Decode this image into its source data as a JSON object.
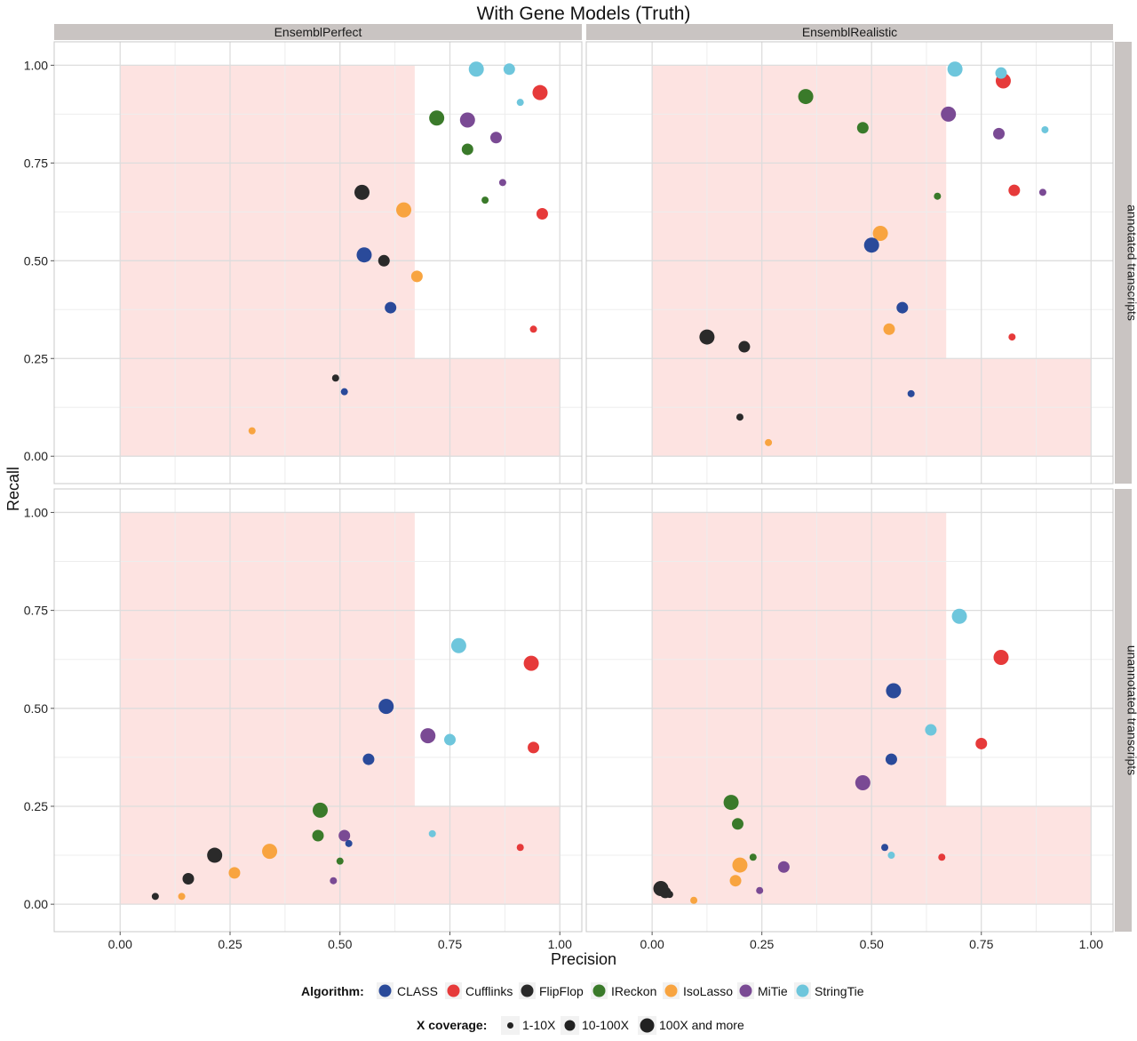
{
  "chart_data": {
    "type": "scatter",
    "title": "With Gene Models (Truth)",
    "xlabel": "Precision",
    "ylabel": "Recall",
    "xlim": [
      -0.15,
      1.05
    ],
    "ylim": [
      -0.07,
      1.06
    ],
    "x_ticks": [
      "0.00",
      "0.25",
      "0.50",
      "0.75",
      "1.00"
    ],
    "y_ticks": [
      "0.00",
      "0.25",
      "0.50",
      "0.75",
      "1.00"
    ],
    "col_facets": [
      "EnsemblPerfect",
      "EnsemblRealistic"
    ],
    "row_facets": [
      "annotated transcripts",
      "unannotated transcripts"
    ],
    "grid": true,
    "legend_position": "bottom",
    "algorithm_legend_title": "Algorithm:",
    "coverage_legend_title": "X coverage:",
    "algorithms": [
      {
        "name": "CLASS",
        "color": "#2a4a9a"
      },
      {
        "name": "Cufflinks",
        "color": "#e63a3a"
      },
      {
        "name": "FlipFlop",
        "color": "#2a2a2a"
      },
      {
        "name": "IReckon",
        "color": "#3a7a2a"
      },
      {
        "name": "IsoLasso",
        "color": "#f8a440"
      },
      {
        "name": "MiTie",
        "color": "#7a4a94"
      },
      {
        "name": "StringTie",
        "color": "#6ec6dc"
      }
    ],
    "coverages": [
      "1-10X",
      "10-100X",
      "100X and more"
    ],
    "shaded_region_color": "#fde3e1",
    "panels": [
      {
        "col": "EnsemblPerfect",
        "row": "annotated transcripts",
        "points": [
          {
            "alg": "StringTie",
            "cov": "100X and more",
            "x": 0.81,
            "y": 0.99
          },
          {
            "alg": "StringTie",
            "cov": "10-100X",
            "x": 0.885,
            "y": 0.99
          },
          {
            "alg": "StringTie",
            "cov": "1-10X",
            "x": 0.91,
            "y": 0.905
          },
          {
            "alg": "Cufflinks",
            "cov": "100X and more",
            "x": 0.955,
            "y": 0.93
          },
          {
            "alg": "Cufflinks",
            "cov": "10-100X",
            "x": 0.96,
            "y": 0.62
          },
          {
            "alg": "Cufflinks",
            "cov": "1-10X",
            "x": 0.94,
            "y": 0.325
          },
          {
            "alg": "IReckon",
            "cov": "100X and more",
            "x": 0.72,
            "y": 0.865
          },
          {
            "alg": "IReckon",
            "cov": "10-100X",
            "x": 0.79,
            "y": 0.785
          },
          {
            "alg": "IReckon",
            "cov": "1-10X",
            "x": 0.83,
            "y": 0.655
          },
          {
            "alg": "MiTie",
            "cov": "100X and more",
            "x": 0.79,
            "y": 0.86
          },
          {
            "alg": "MiTie",
            "cov": "10-100X",
            "x": 0.855,
            "y": 0.815
          },
          {
            "alg": "MiTie",
            "cov": "1-10X",
            "x": 0.87,
            "y": 0.7
          },
          {
            "alg": "FlipFlop",
            "cov": "100X and more",
            "x": 0.55,
            "y": 0.675
          },
          {
            "alg": "FlipFlop",
            "cov": "10-100X",
            "x": 0.6,
            "y": 0.5
          },
          {
            "alg": "FlipFlop",
            "cov": "1-10X",
            "x": 0.49,
            "y": 0.2
          },
          {
            "alg": "IsoLasso",
            "cov": "100X and more",
            "x": 0.645,
            "y": 0.63
          },
          {
            "alg": "IsoLasso",
            "cov": "10-100X",
            "x": 0.675,
            "y": 0.46
          },
          {
            "alg": "IsoLasso",
            "cov": "1-10X",
            "x": 0.3,
            "y": 0.065
          },
          {
            "alg": "CLASS",
            "cov": "100X and more",
            "x": 0.555,
            "y": 0.515
          },
          {
            "alg": "CLASS",
            "cov": "10-100X",
            "x": 0.615,
            "y": 0.38
          },
          {
            "alg": "CLASS",
            "cov": "1-10X",
            "x": 0.51,
            "y": 0.165
          }
        ]
      },
      {
        "col": "EnsemblRealistic",
        "row": "annotated transcripts",
        "points": [
          {
            "alg": "StringTie",
            "cov": "100X and more",
            "x": 0.69,
            "y": 0.99
          },
          {
            "alg": "StringTie",
            "cov": "10-100X",
            "x": 0.795,
            "y": 0.98
          },
          {
            "alg": "StringTie",
            "cov": "1-10X",
            "x": 0.895,
            "y": 0.835
          },
          {
            "alg": "Cufflinks",
            "cov": "100X and more",
            "x": 0.8,
            "y": 0.96
          },
          {
            "alg": "Cufflinks",
            "cov": "10-100X",
            "x": 0.825,
            "y": 0.68
          },
          {
            "alg": "Cufflinks",
            "cov": "1-10X",
            "x": 0.82,
            "y": 0.305
          },
          {
            "alg": "IReckon",
            "cov": "100X and more",
            "x": 0.35,
            "y": 0.92
          },
          {
            "alg": "IReckon",
            "cov": "10-100X",
            "x": 0.48,
            "y": 0.84
          },
          {
            "alg": "IReckon",
            "cov": "1-10X",
            "x": 0.65,
            "y": 0.665
          },
          {
            "alg": "MiTie",
            "cov": "100X and more",
            "x": 0.675,
            "y": 0.875
          },
          {
            "alg": "MiTie",
            "cov": "10-100X",
            "x": 0.79,
            "y": 0.825
          },
          {
            "alg": "MiTie",
            "cov": "1-10X",
            "x": 0.89,
            "y": 0.675
          },
          {
            "alg": "IsoLasso",
            "cov": "100X and more",
            "x": 0.52,
            "y": 0.57
          },
          {
            "alg": "IsoLasso",
            "cov": "10-100X",
            "x": 0.54,
            "y": 0.325
          },
          {
            "alg": "IsoLasso",
            "cov": "1-10X",
            "x": 0.265,
            "y": 0.035
          },
          {
            "alg": "CLASS",
            "cov": "100X and more",
            "x": 0.5,
            "y": 0.54
          },
          {
            "alg": "CLASS",
            "cov": "10-100X",
            "x": 0.57,
            "y": 0.38
          },
          {
            "alg": "CLASS",
            "cov": "1-10X",
            "x": 0.59,
            "y": 0.16
          },
          {
            "alg": "FlipFlop",
            "cov": "100X and more",
            "x": 0.125,
            "y": 0.305
          },
          {
            "alg": "FlipFlop",
            "cov": "10-100X",
            "x": 0.21,
            "y": 0.28
          },
          {
            "alg": "FlipFlop",
            "cov": "1-10X",
            "x": 0.2,
            "y": 0.1
          }
        ]
      },
      {
        "col": "EnsemblPerfect",
        "row": "unannotated transcripts",
        "points": [
          {
            "alg": "StringTie",
            "cov": "100X and more",
            "x": 0.77,
            "y": 0.66
          },
          {
            "alg": "StringTie",
            "cov": "10-100X",
            "x": 0.75,
            "y": 0.42
          },
          {
            "alg": "StringTie",
            "cov": "1-10X",
            "x": 0.71,
            "y": 0.18
          },
          {
            "alg": "Cufflinks",
            "cov": "100X and more",
            "x": 0.935,
            "y": 0.615
          },
          {
            "alg": "Cufflinks",
            "cov": "10-100X",
            "x": 0.94,
            "y": 0.4
          },
          {
            "alg": "Cufflinks",
            "cov": "1-10X",
            "x": 0.91,
            "y": 0.145
          },
          {
            "alg": "CLASS",
            "cov": "100X and more",
            "x": 0.605,
            "y": 0.505
          },
          {
            "alg": "CLASS",
            "cov": "10-100X",
            "x": 0.565,
            "y": 0.37
          },
          {
            "alg": "CLASS",
            "cov": "1-10X",
            "x": 0.52,
            "y": 0.155
          },
          {
            "alg": "MiTie",
            "cov": "100X and more",
            "x": 0.7,
            "y": 0.43
          },
          {
            "alg": "MiTie",
            "cov": "10-100X",
            "x": 0.51,
            "y": 0.175
          },
          {
            "alg": "MiTie",
            "cov": "1-10X",
            "x": 0.485,
            "y": 0.06
          },
          {
            "alg": "IReckon",
            "cov": "100X and more",
            "x": 0.455,
            "y": 0.24
          },
          {
            "alg": "IReckon",
            "cov": "10-100X",
            "x": 0.45,
            "y": 0.175
          },
          {
            "alg": "IReckon",
            "cov": "1-10X",
            "x": 0.5,
            "y": 0.11
          },
          {
            "alg": "IsoLasso",
            "cov": "100X and more",
            "x": 0.34,
            "y": 0.135
          },
          {
            "alg": "IsoLasso",
            "cov": "10-100X",
            "x": 0.26,
            "y": 0.08
          },
          {
            "alg": "IsoLasso",
            "cov": "1-10X",
            "x": 0.14,
            "y": 0.02
          },
          {
            "alg": "FlipFlop",
            "cov": "100X and more",
            "x": 0.215,
            "y": 0.125
          },
          {
            "alg": "FlipFlop",
            "cov": "10-100X",
            "x": 0.155,
            "y": 0.065
          },
          {
            "alg": "FlipFlop",
            "cov": "1-10X",
            "x": 0.08,
            "y": 0.02
          }
        ]
      },
      {
        "col": "EnsemblRealistic",
        "row": "unannotated transcripts",
        "points": [
          {
            "alg": "StringTie",
            "cov": "100X and more",
            "x": 0.7,
            "y": 0.735
          },
          {
            "alg": "StringTie",
            "cov": "10-100X",
            "x": 0.635,
            "y": 0.445
          },
          {
            "alg": "StringTie",
            "cov": "1-10X",
            "x": 0.545,
            "y": 0.125
          },
          {
            "alg": "Cufflinks",
            "cov": "100X and more",
            "x": 0.795,
            "y": 0.63
          },
          {
            "alg": "Cufflinks",
            "cov": "10-100X",
            "x": 0.75,
            "y": 0.41
          },
          {
            "alg": "Cufflinks",
            "cov": "1-10X",
            "x": 0.66,
            "y": 0.12
          },
          {
            "alg": "CLASS",
            "cov": "100X and more",
            "x": 0.55,
            "y": 0.545
          },
          {
            "alg": "CLASS",
            "cov": "10-100X",
            "x": 0.545,
            "y": 0.37
          },
          {
            "alg": "CLASS",
            "cov": "1-10X",
            "x": 0.53,
            "y": 0.145
          },
          {
            "alg": "MiTie",
            "cov": "100X and more",
            "x": 0.48,
            "y": 0.31
          },
          {
            "alg": "MiTie",
            "cov": "10-100X",
            "x": 0.3,
            "y": 0.095
          },
          {
            "alg": "MiTie",
            "cov": "1-10X",
            "x": 0.245,
            "y": 0.035
          },
          {
            "alg": "IReckon",
            "cov": "100X and more",
            "x": 0.18,
            "y": 0.26
          },
          {
            "alg": "IReckon",
            "cov": "10-100X",
            "x": 0.195,
            "y": 0.205
          },
          {
            "alg": "IReckon",
            "cov": "1-10X",
            "x": 0.23,
            "y": 0.12
          },
          {
            "alg": "IsoLasso",
            "cov": "100X and more",
            "x": 0.2,
            "y": 0.1
          },
          {
            "alg": "IsoLasso",
            "cov": "10-100X",
            "x": 0.19,
            "y": 0.06
          },
          {
            "alg": "IsoLasso",
            "cov": "1-10X",
            "x": 0.095,
            "y": 0.01
          },
          {
            "alg": "FlipFlop",
            "cov": "100X and more",
            "x": 0.02,
            "y": 0.04
          },
          {
            "alg": "FlipFlop",
            "cov": "10-100X",
            "x": 0.03,
            "y": 0.03
          },
          {
            "alg": "FlipFlop",
            "cov": "1-10X",
            "x": 0.04,
            "y": 0.025
          }
        ]
      }
    ]
  }
}
